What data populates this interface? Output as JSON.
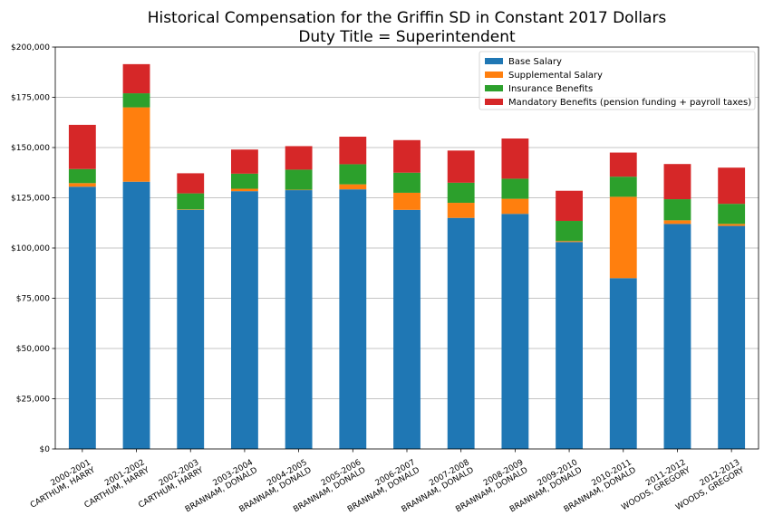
{
  "chart_data": {
    "type": "bar",
    "stacked": true,
    "title": [
      "Historical Compensation for the Griffin SD in Constant 2017 Dollars",
      "Duty Title = Superintendent"
    ],
    "xlabel": "",
    "ylabel": "",
    "ylim": [
      0,
      200000
    ],
    "yticks": [
      0,
      25000,
      50000,
      75000,
      100000,
      125000,
      150000,
      175000,
      200000
    ],
    "ytick_labels": [
      "$0",
      "$25,000",
      "$50,000",
      "$75,000",
      "$100,000",
      "$125,000",
      "$150,000",
      "$175,000",
      "$200,000"
    ],
    "grid": "y",
    "legend_position": "top-right",
    "categories": [
      [
        "2000-2001",
        "CARTHUM, HARRY"
      ],
      [
        "2001-2002",
        "CARTHUM, HARRY"
      ],
      [
        "2002-2003",
        "CARTHUM, HARRY"
      ],
      [
        "2003-2004",
        "BRANNAM, DONALD"
      ],
      [
        "2004-2005",
        "BRANNAM, DONALD"
      ],
      [
        "2005-2006",
        "BRANNAM, DONALD"
      ],
      [
        "2006-2007",
        "BRANNAM, DONALD"
      ],
      [
        "2007-2008",
        "BRANNAM, DONALD"
      ],
      [
        "2008-2009",
        "BRANNAM, DONALD"
      ],
      [
        "2009-2010",
        "BRANNAM, DONALD"
      ],
      [
        "2010-2011",
        "BRANNAM, DONALD"
      ],
      [
        "2011-2012",
        "WOODS, GREGORY"
      ],
      [
        "2012-2013",
        "WOODS, GREGORY"
      ]
    ],
    "series": [
      {
        "name": "Base Salary",
        "color": "#1f77b4",
        "values": [
          130500,
          133000,
          119000,
          128300,
          128800,
          129200,
          119000,
          115000,
          117000,
          103000,
          85000,
          112000,
          111000
        ]
      },
      {
        "name": "Supplemental Salary",
        "color": "#ff7f0e",
        "values": [
          1800,
          37000,
          200,
          1200,
          200,
          2500,
          8500,
          7500,
          7500,
          500,
          40500,
          1800,
          1000
        ]
      },
      {
        "name": "Insurance Benefits",
        "color": "#2ca02c",
        "values": [
          7000,
          7000,
          8000,
          7500,
          10000,
          10000,
          10000,
          10000,
          10000,
          10000,
          10000,
          10500,
          10000
        ]
      },
      {
        "name": "Mandatory Benefits (pension funding + payroll taxes)",
        "color": "#d62728",
        "values": [
          22000,
          14500,
          10000,
          12000,
          11700,
          13700,
          16200,
          16000,
          20000,
          15000,
          12000,
          17500,
          18000
        ]
      }
    ]
  }
}
